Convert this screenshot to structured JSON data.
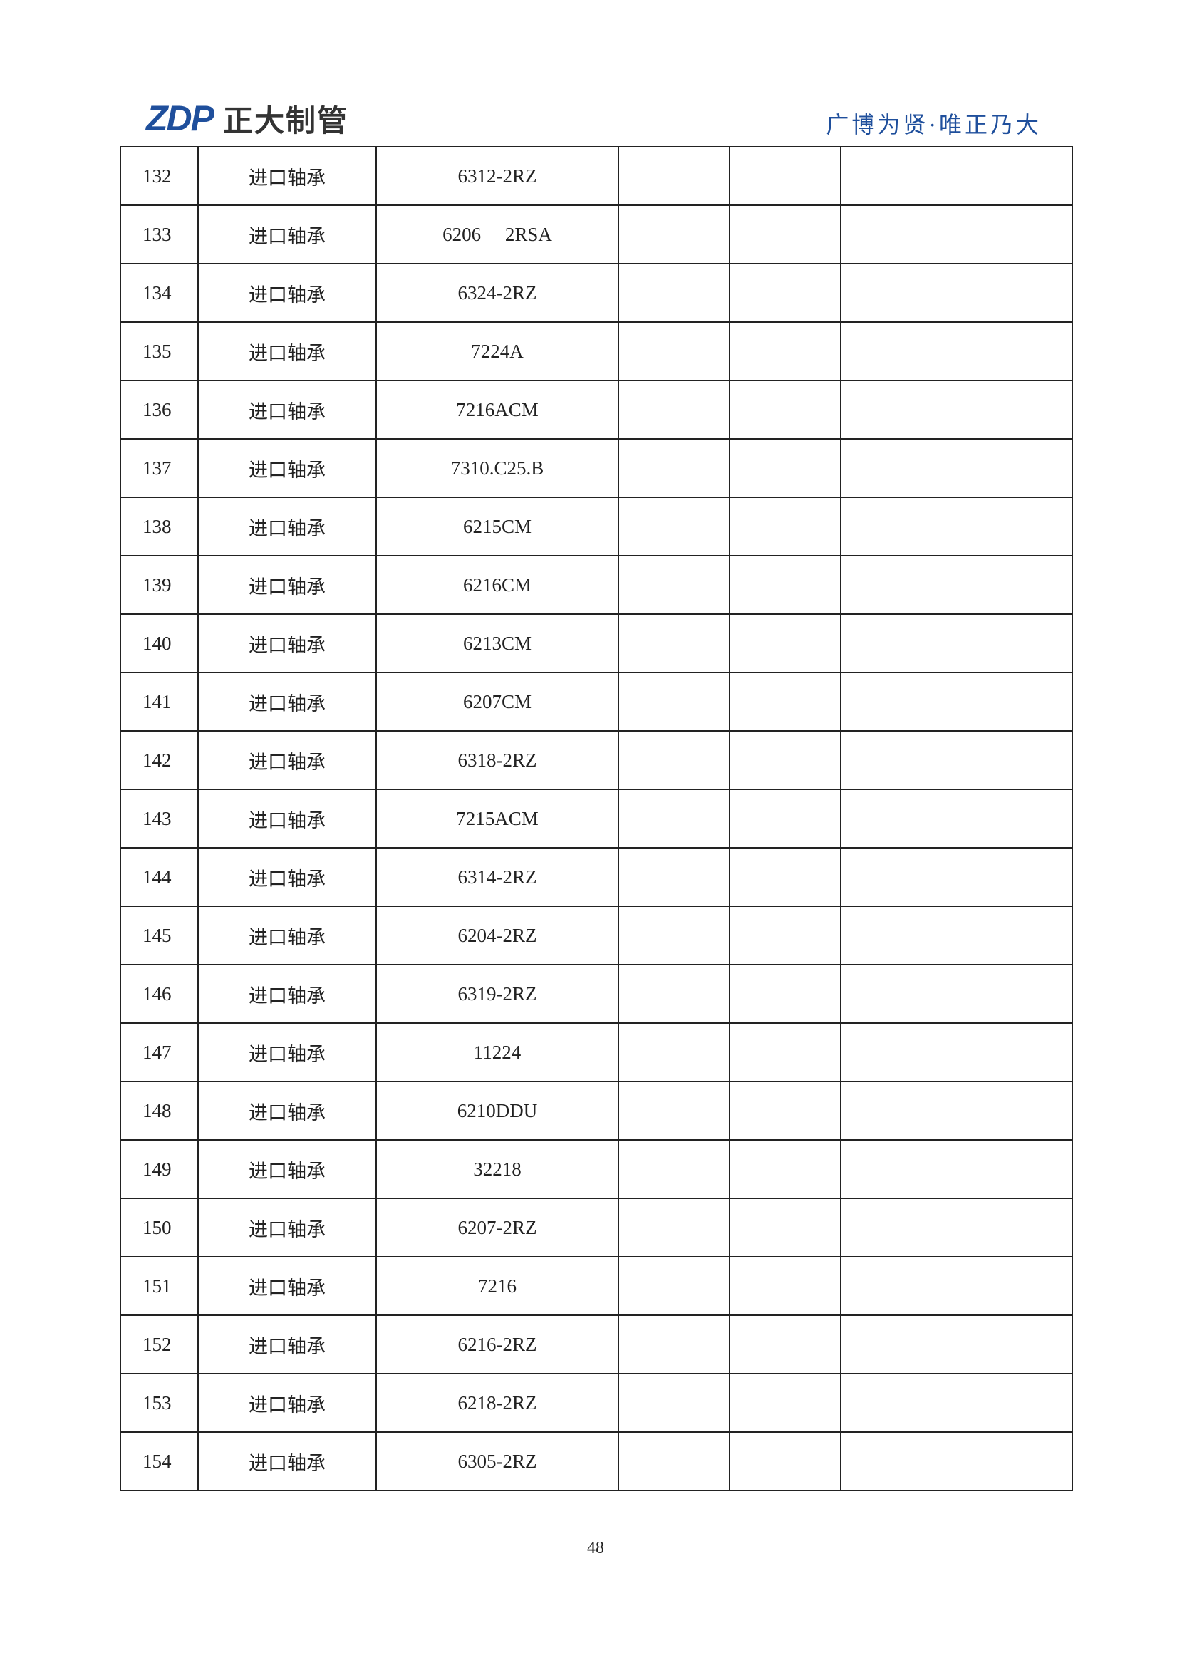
{
  "header": {
    "logo_mark": "ZDP",
    "company": "正大制管",
    "slogan": "广博为贤·唯正乃大"
  },
  "table": {
    "rows": [
      [
        "132",
        "进口轴承",
        "6312-2RZ"
      ],
      [
        "133",
        "进口轴承",
        "6206     2RSA"
      ],
      [
        "134",
        "进口轴承",
        "6324-2RZ"
      ],
      [
        "135",
        "进口轴承",
        "7224A"
      ],
      [
        "136",
        "进口轴承",
        "7216ACM"
      ],
      [
        "137",
        "进口轴承",
        "7310.C25.B"
      ],
      [
        "138",
        "进口轴承",
        "6215CM"
      ],
      [
        "139",
        "进口轴承",
        "6216CM"
      ],
      [
        "140",
        "进口轴承",
        "6213CM"
      ],
      [
        "141",
        "进口轴承",
        "6207CM"
      ],
      [
        "142",
        "进口轴承",
        "6318-2RZ"
      ],
      [
        "143",
        "进口轴承",
        "7215ACM"
      ],
      [
        "144",
        "进口轴承",
        "6314-2RZ"
      ],
      [
        "145",
        "进口轴承",
        "6204-2RZ"
      ],
      [
        "146",
        "进口轴承",
        "6319-2RZ"
      ],
      [
        "147",
        "进口轴承",
        "11224"
      ],
      [
        "148",
        "进口轴承",
        "6210DDU"
      ],
      [
        "149",
        "进口轴承",
        "32218"
      ],
      [
        "150",
        "进口轴承",
        "6207-2RZ"
      ],
      [
        "151",
        "进口轴承",
        "7216"
      ],
      [
        "152",
        "进口轴承",
        "6216-2RZ"
      ],
      [
        "153",
        "进口轴承",
        "6218-2RZ"
      ],
      [
        "154",
        "进口轴承",
        "6305-2RZ"
      ]
    ]
  },
  "footer": {
    "page_number": "48"
  }
}
